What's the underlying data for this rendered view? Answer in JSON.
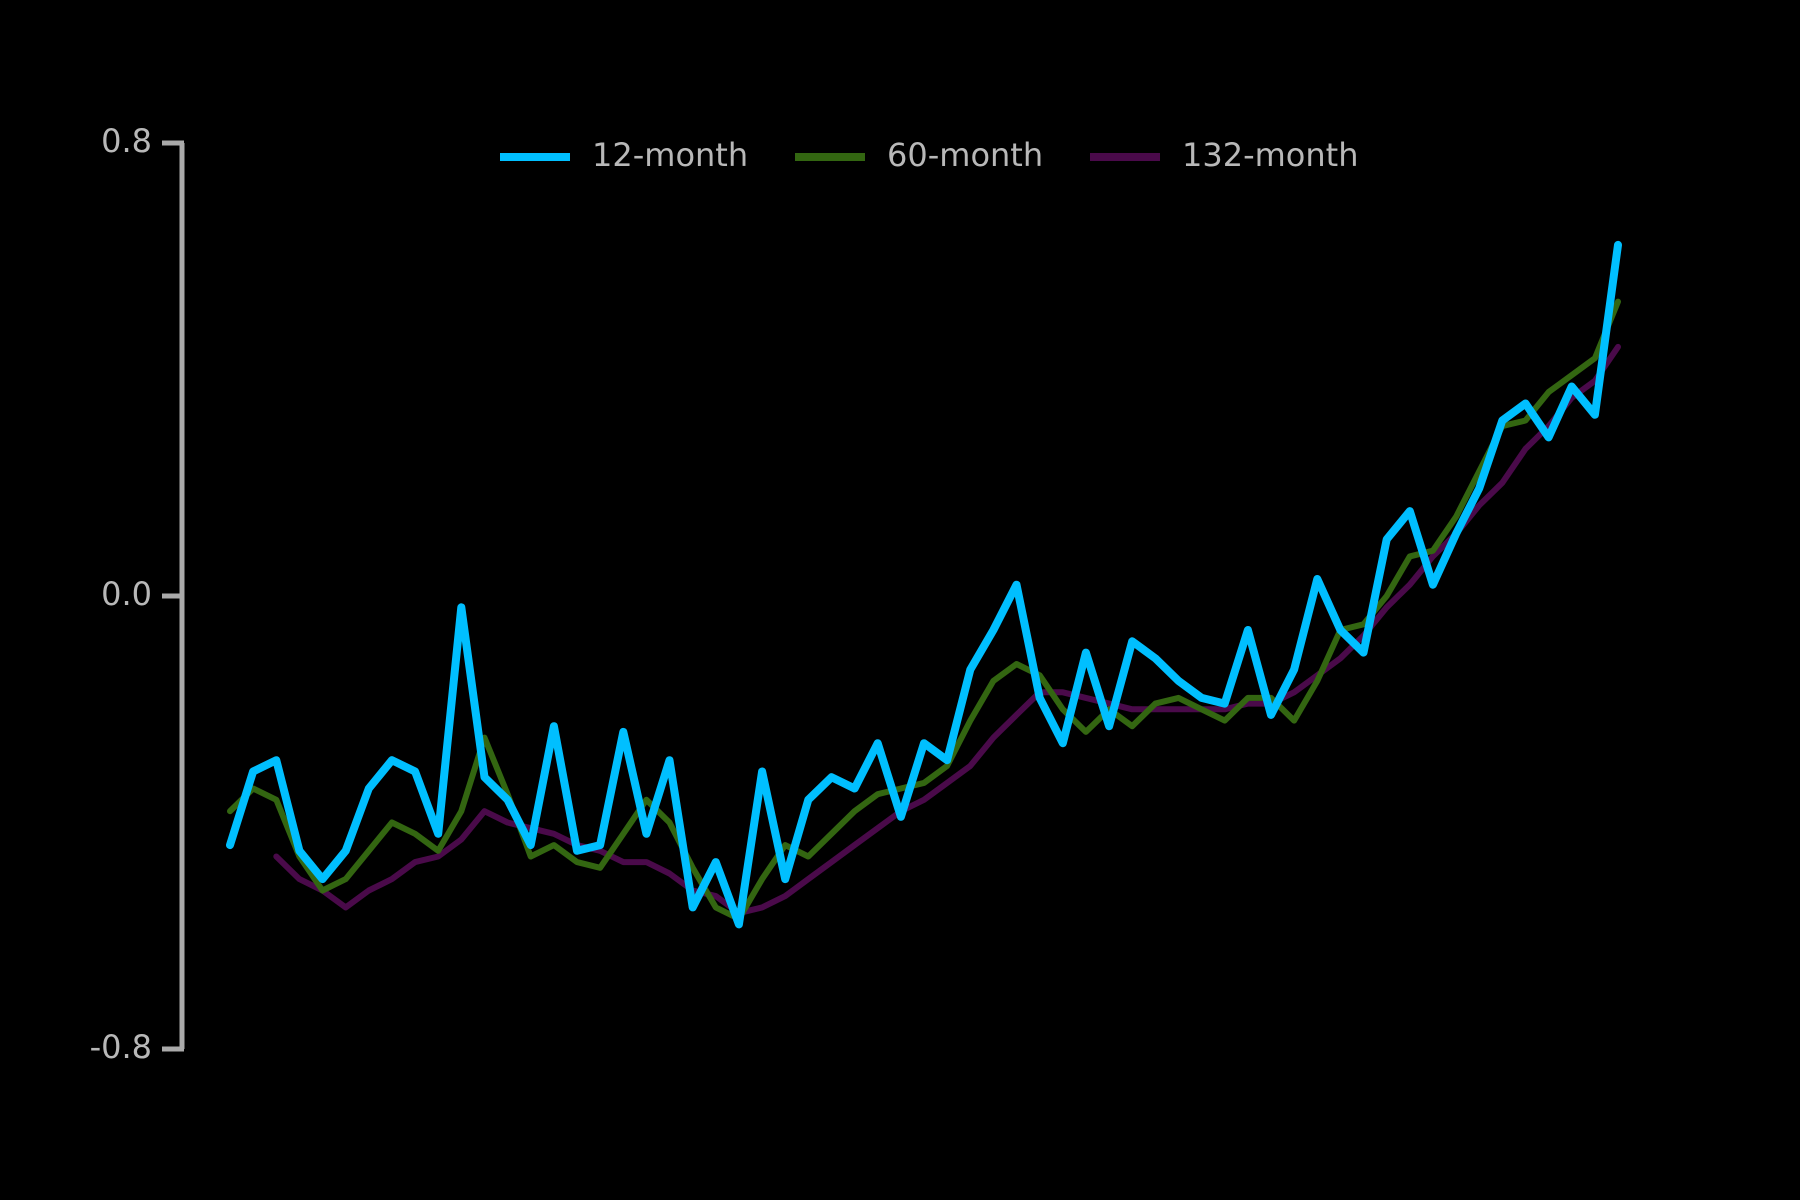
{
  "chart_data": {
    "type": "line",
    "ylim": [
      -0.8,
      0.8
    ],
    "yticks": [
      -0.8,
      {
        "value": 0,
        "label": "0.0"
      },
      0.8
    ],
    "legend": "top",
    "series": [
      {
        "name": "12-month",
        "color": "#00bfff",
        "values": [
          -0.44,
          -0.31,
          -0.29,
          -0.45,
          -0.5,
          -0.45,
          -0.34,
          -0.29,
          -0.31,
          -0.42,
          -0.02,
          -0.32,
          -0.36,
          -0.44,
          -0.23,
          -0.45,
          -0.44,
          -0.24,
          -0.42,
          -0.29,
          -0.55,
          -0.47,
          -0.58,
          -0.31,
          -0.5,
          -0.36,
          -0.32,
          -0.34,
          -0.26,
          -0.39,
          -0.26,
          -0.29,
          -0.13,
          -0.06,
          0.02,
          -0.18,
          -0.26,
          -0.1,
          -0.23,
          -0.08,
          -0.11,
          -0.15,
          -0.18,
          -0.19,
          -0.06,
          -0.21,
          -0.13,
          0.03,
          -0.06,
          -0.1,
          0.1,
          0.15,
          0.02,
          0.11,
          0.19,
          0.31,
          0.34,
          0.28,
          0.37,
          0.32,
          0.62
        ]
      },
      {
        "name": "60-month",
        "color": "#336611",
        "values": [
          -0.38,
          -0.34,
          -0.36,
          -0.46,
          -0.52,
          -0.5,
          -0.45,
          -0.4,
          -0.42,
          -0.45,
          -0.38,
          -0.25,
          -0.35,
          -0.46,
          -0.44,
          -0.47,
          -0.48,
          -0.42,
          -0.36,
          -0.4,
          -0.48,
          -0.55,
          -0.57,
          -0.5,
          -0.44,
          -0.46,
          -0.42,
          -0.38,
          -0.35,
          -0.34,
          -0.33,
          -0.3,
          -0.22,
          -0.15,
          -0.12,
          -0.14,
          -0.2,
          -0.24,
          -0.2,
          -0.23,
          -0.19,
          -0.18,
          -0.2,
          -0.22,
          -0.18,
          -0.18,
          -0.22,
          -0.15,
          -0.06,
          -0.05,
          0.0,
          0.07,
          0.08,
          0.14,
          0.22,
          0.3,
          0.31,
          0.36,
          0.39,
          0.42,
          0.52
        ]
      },
      {
        "name": "132-month",
        "color": "#4a0a4a",
        "values": [
          null,
          null,
          -0.46,
          -0.5,
          -0.52,
          -0.55,
          -0.52,
          -0.5,
          -0.47,
          -0.46,
          -0.43,
          -0.38,
          -0.4,
          -0.41,
          -0.42,
          -0.44,
          -0.45,
          -0.47,
          -0.47,
          -0.49,
          -0.52,
          -0.53,
          -0.56,
          -0.55,
          -0.53,
          -0.5,
          -0.47,
          -0.44,
          -0.41,
          -0.38,
          -0.36,
          -0.33,
          -0.3,
          -0.25,
          -0.21,
          -0.17,
          -0.17,
          -0.18,
          -0.19,
          -0.2,
          -0.2,
          -0.2,
          -0.2,
          -0.2,
          -0.19,
          -0.19,
          -0.17,
          -0.14,
          -0.11,
          -0.07,
          -0.02,
          0.02,
          0.07,
          0.11,
          0.16,
          0.2,
          0.26,
          0.3,
          0.35,
          0.38,
          0.44
        ]
      }
    ]
  }
}
